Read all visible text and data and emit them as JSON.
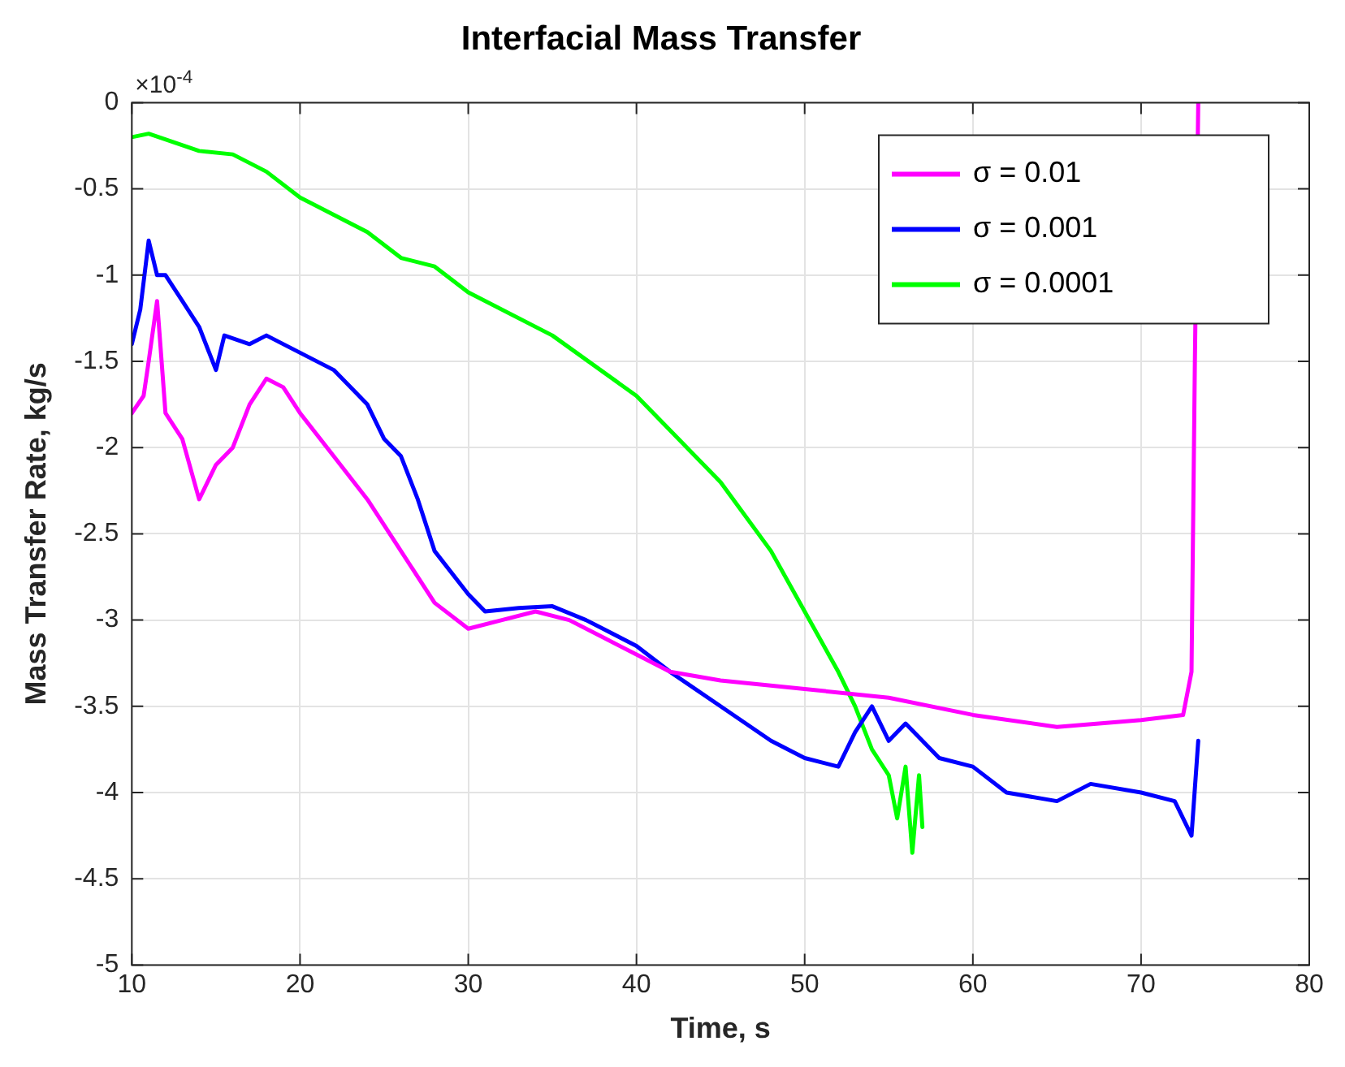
{
  "chart_data": {
    "type": "line",
    "title": "Interfacial Mass Transfer",
    "xlabel": "Time, s",
    "ylabel": "Mass Transfer Rate, kg/s",
    "annotations": [
      "×10$^{-4}$"
    ],
    "xlim": [
      10,
      80
    ],
    "xticks": [
      10,
      20,
      30,
      40,
      50,
      60,
      70,
      80
    ],
    "ylim": [
      -5,
      0
    ],
    "yticks": [
      -5,
      -4.5,
      -4,
      -3.5,
      -3,
      -2.5,
      -2,
      -1.5,
      -1,
      -0.5,
      0
    ],
    "grid": true,
    "legend": "top right",
    "marker": "none",
    "line_style": "solid",
    "series": [
      {
        "name": "σ = 0.01",
        "color": "#ff00ff",
        "x": [
          10,
          10.7,
          11,
          11.5,
          12,
          13,
          14,
          15,
          16,
          17,
          18,
          19,
          20,
          22,
          24,
          26,
          28,
          30,
          32,
          34,
          36,
          38,
          40,
          42,
          45,
          50,
          55,
          60,
          65,
          70,
          72.5,
          73,
          73.2,
          73.4
        ],
        "values": [
          -1.8,
          -1.7,
          -1.5,
          -1.15,
          -1.8,
          -1.95,
          -2.3,
          -2.1,
          -2,
          -1.75,
          -1.6,
          -1.65,
          -1.8,
          -2.05,
          -2.3,
          -2.6,
          -2.9,
          -3.05,
          -3,
          -2.95,
          -3,
          -3.1,
          -3.2,
          -3.3,
          -3.35,
          -3.4,
          -3.45,
          -3.55,
          -3.62,
          -3.58,
          -3.55,
          -3.3,
          -1.5,
          0
        ]
      },
      {
        "name": "σ = 0.001",
        "color": "#0000ff",
        "x": [
          10,
          10.5,
          11,
          11.5,
          12,
          13,
          14,
          15,
          15.5,
          17,
          18,
          20,
          22,
          24,
          25,
          26,
          27,
          28,
          30,
          31,
          33,
          35,
          37,
          40,
          42,
          45,
          48,
          50,
          52,
          53,
          54,
          55,
          56,
          58,
          60,
          62,
          65,
          67,
          70,
          72,
          73,
          73.4
        ],
        "values": [
          -1.4,
          -1.2,
          -0.8,
          -1,
          -1,
          -1.15,
          -1.3,
          -1.55,
          -1.35,
          -1.4,
          -1.35,
          -1.45,
          -1.55,
          -1.75,
          -1.95,
          -2.05,
          -2.3,
          -2.6,
          -2.85,
          -2.95,
          -2.93,
          -2.92,
          -3,
          -3.15,
          -3.3,
          -3.5,
          -3.7,
          -3.8,
          -3.85,
          -3.65,
          -3.5,
          -3.7,
          -3.6,
          -3.8,
          -3.85,
          -4,
          -4.05,
          -3.95,
          -4,
          -4.05,
          -4.25,
          -3.7
        ]
      },
      {
        "name": "σ = 0.0001",
        "color": "#00ff00",
        "x": [
          10,
          11,
          14,
          16,
          18,
          20,
          22,
          24,
          26,
          28,
          30,
          35,
          40,
          45,
          48,
          50,
          52,
          53,
          54,
          55,
          55.5,
          56,
          56.4,
          56.8,
          57
        ],
        "values": [
          -0.2,
          -0.18,
          -0.28,
          -0.3,
          -0.4,
          -0.55,
          -0.65,
          -0.75,
          -0.9,
          -0.95,
          -1.1,
          -1.35,
          -1.7,
          -2.2,
          -2.6,
          -2.95,
          -3.3,
          -3.5,
          -3.75,
          -3.9,
          -4.15,
          -3.85,
          -4.35,
          -3.9,
          -4.2
        ]
      }
    ]
  }
}
